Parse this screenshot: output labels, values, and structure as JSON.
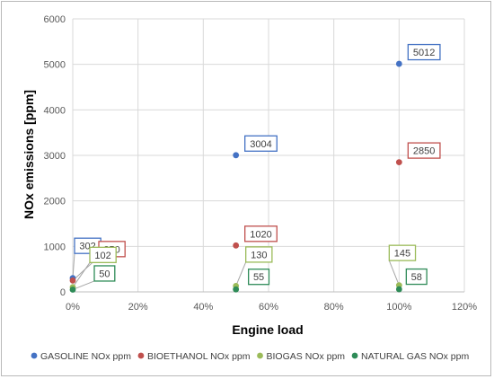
{
  "chart_data": {
    "type": "scatter",
    "title": "",
    "xlabel": "Engine load",
    "ylabel": "NOx emissions [ppm]",
    "xlim": [
      0,
      120
    ],
    "ylim": [
      0,
      6000
    ],
    "x_ticks": [
      "0%",
      "20%",
      "40%",
      "60%",
      "80%",
      "100%",
      "120%"
    ],
    "x_tick_values": [
      0,
      20,
      40,
      60,
      80,
      100,
      120
    ],
    "y_ticks": [
      "0",
      "1000",
      "2000",
      "3000",
      "4000",
      "5000",
      "6000"
    ],
    "y_tick_values": [
      0,
      1000,
      2000,
      3000,
      4000,
      5000,
      6000
    ],
    "grid": true,
    "legend_position": "bottom",
    "series": [
      {
        "name": "GASOLINE NOx ppm",
        "color": "#4472c4",
        "x": [
          0,
          50,
          100
        ],
        "y": [
          302,
          3004,
          5012
        ],
        "labels": [
          "302",
          "3004",
          "5012"
        ]
      },
      {
        "name": "BIOETHANOL NOx ppm",
        "color": "#c0504d",
        "x": [
          0,
          50,
          100
        ],
        "y": [
          250,
          1020,
          2850
        ],
        "labels": [
          "250",
          "1020",
          "2850"
        ]
      },
      {
        "name": "BIOGAS  NOx ppm",
        "color": "#9bbb59",
        "x": [
          0,
          50,
          100
        ],
        "y": [
          102,
          130,
          145
        ],
        "labels": [
          "102",
          "130",
          "145"
        ]
      },
      {
        "name": "NATURAL GAS NOx ppm",
        "color": "#2e8b57",
        "x": [
          0,
          50,
          100
        ],
        "y": [
          50,
          55,
          58
        ],
        "labels": [
          "50",
          "55",
          "58"
        ]
      }
    ]
  }
}
